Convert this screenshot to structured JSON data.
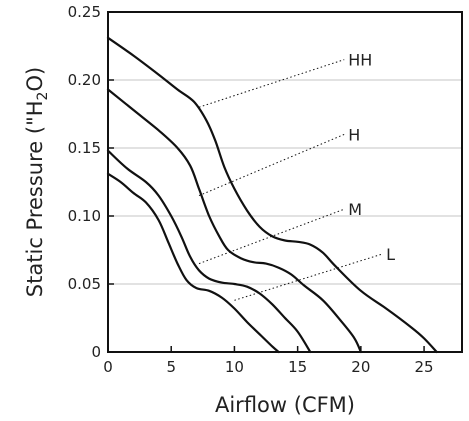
{
  "chart_data": {
    "type": "line",
    "title": "",
    "xlabel": "Airflow (CFM)",
    "ylabel_main": "Static Pressure (\"H",
    "ylabel_sub": "2",
    "ylabel_end": "O)",
    "xlim": [
      0,
      28
    ],
    "ylim": [
      0,
      0.25
    ],
    "x_ticks": [
      0,
      5,
      10,
      15,
      20,
      25
    ],
    "x_tick_labels": [
      "0",
      "5",
      "10",
      "15",
      "20",
      "25"
    ],
    "y_ticks": [
      0,
      0.05,
      0.1,
      0.15,
      0.2,
      0.25
    ],
    "y_tick_labels": [
      "0",
      "0.05",
      "0.10",
      "0.15",
      "0.20",
      "0.25"
    ],
    "grid": "horizontal",
    "line_color": "#111111",
    "grid_color": "#c4c4c4",
    "series": [
      {
        "name": "HH",
        "label_at": [
          19.0,
          0.215
        ],
        "leader_from": [
          7.2,
          0.18
        ],
        "points": [
          [
            0,
            0.231
          ],
          [
            2,
            0.218
          ],
          [
            4,
            0.204
          ],
          [
            5.5,
            0.193
          ],
          [
            6.8,
            0.184
          ],
          [
            7.8,
            0.17
          ],
          [
            8.5,
            0.155
          ],
          [
            9.2,
            0.136
          ],
          [
            10.0,
            0.12
          ],
          [
            11.0,
            0.104
          ],
          [
            12.0,
            0.092
          ],
          [
            13.0,
            0.085
          ],
          [
            14.0,
            0.082
          ],
          [
            15.0,
            0.081
          ],
          [
            16.0,
            0.079
          ],
          [
            17.0,
            0.073
          ],
          [
            18.0,
            0.063
          ],
          [
            20.0,
            0.045
          ],
          [
            22.0,
            0.032
          ],
          [
            24.0,
            0.018
          ],
          [
            25.0,
            0.01
          ],
          [
            26.0,
            0.0
          ]
        ]
      },
      {
        "name": "H",
        "label_at": [
          19.0,
          0.16
        ],
        "leader_from": [
          7.2,
          0.115
        ],
        "points": [
          [
            0,
            0.193
          ],
          [
            2,
            0.178
          ],
          [
            4,
            0.163
          ],
          [
            5.5,
            0.15
          ],
          [
            6.5,
            0.137
          ],
          [
            7.2,
            0.12
          ],
          [
            8.0,
            0.1
          ],
          [
            8.8,
            0.085
          ],
          [
            9.5,
            0.075
          ],
          [
            10.5,
            0.069
          ],
          [
            11.5,
            0.066
          ],
          [
            12.5,
            0.065
          ],
          [
            13.5,
            0.062
          ],
          [
            14.5,
            0.057
          ],
          [
            15.5,
            0.049
          ],
          [
            17.0,
            0.038
          ],
          [
            18.5,
            0.022
          ],
          [
            19.5,
            0.01
          ],
          [
            20.0,
            0.0
          ]
        ]
      },
      {
        "name": "M",
        "label_at": [
          19.0,
          0.105
        ],
        "leader_from": [
          7.2,
          0.065
        ],
        "points": [
          [
            0,
            0.148
          ],
          [
            1.5,
            0.135
          ],
          [
            3.0,
            0.125
          ],
          [
            4.0,
            0.115
          ],
          [
            5.0,
            0.1
          ],
          [
            5.8,
            0.085
          ],
          [
            6.5,
            0.07
          ],
          [
            7.2,
            0.06
          ],
          [
            8.0,
            0.054
          ],
          [
            9.0,
            0.051
          ],
          [
            10.0,
            0.05
          ],
          [
            11.0,
            0.048
          ],
          [
            12.0,
            0.043
          ],
          [
            13.0,
            0.035
          ],
          [
            14.0,
            0.025
          ],
          [
            15.0,
            0.015
          ],
          [
            16.0,
            0.0
          ]
        ]
      },
      {
        "name": "L",
        "label_at": [
          22.0,
          0.072
        ],
        "leader_from": [
          10.0,
          0.038
        ],
        "points": [
          [
            0,
            0.131
          ],
          [
            1.0,
            0.125
          ],
          [
            2.0,
            0.117
          ],
          [
            3.0,
            0.11
          ],
          [
            4.0,
            0.097
          ],
          [
            4.8,
            0.08
          ],
          [
            5.5,
            0.065
          ],
          [
            6.2,
            0.053
          ],
          [
            7.0,
            0.047
          ],
          [
            8.0,
            0.045
          ],
          [
            9.0,
            0.04
          ],
          [
            10.0,
            0.032
          ],
          [
            11.0,
            0.022
          ],
          [
            12.0,
            0.013
          ],
          [
            13.0,
            0.004
          ],
          [
            13.5,
            0.0
          ]
        ]
      }
    ]
  }
}
